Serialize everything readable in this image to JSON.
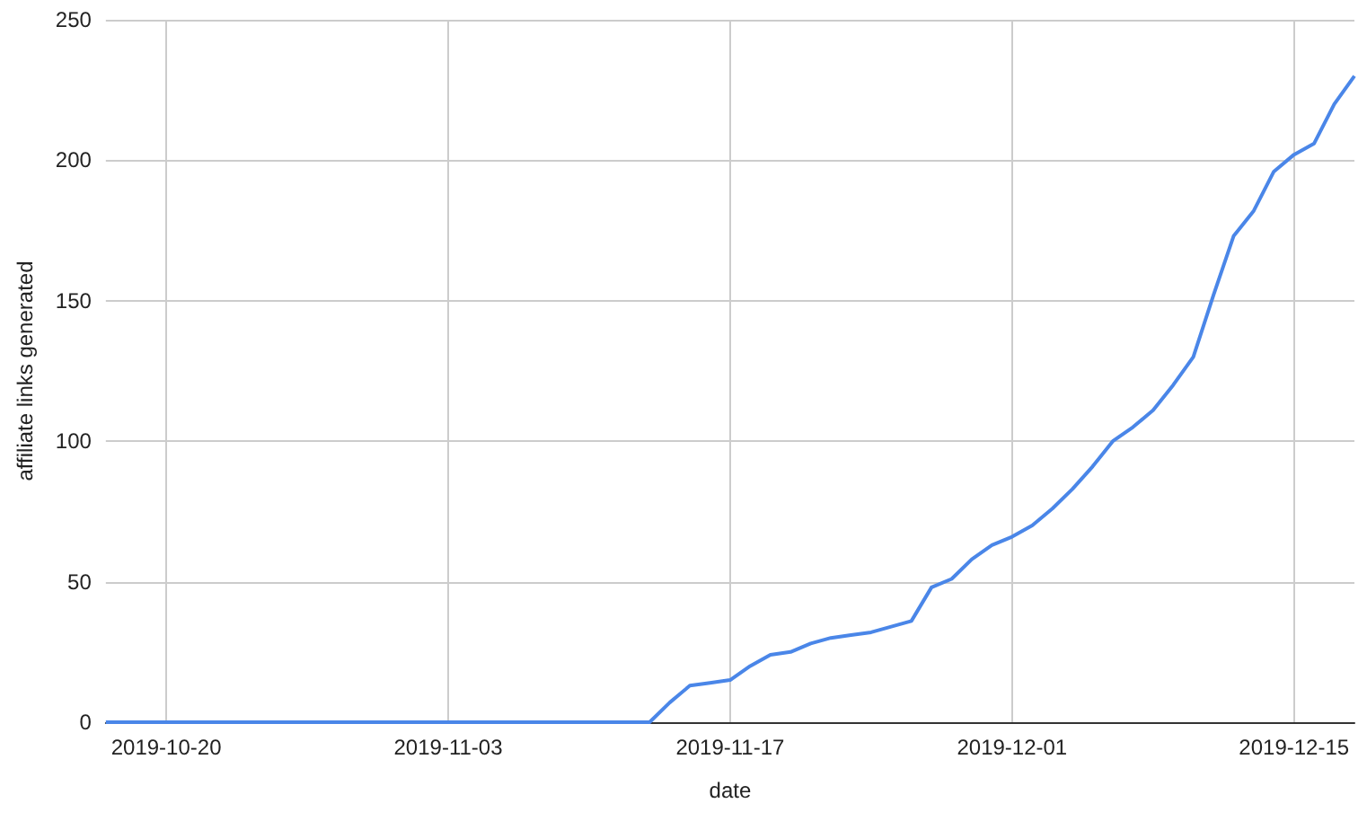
{
  "chart_data": {
    "type": "line",
    "xlabel": "date",
    "ylabel": "affiliate links generated",
    "x": [
      "2019-10-17",
      "2019-11-13",
      "2019-11-14",
      "2019-11-15",
      "2019-11-16",
      "2019-11-17",
      "2019-11-18",
      "2019-11-19",
      "2019-11-20",
      "2019-11-21",
      "2019-11-22",
      "2019-11-23",
      "2019-11-24",
      "2019-11-25",
      "2019-11-26",
      "2019-11-27",
      "2019-11-28",
      "2019-11-29",
      "2019-11-30",
      "2019-12-01",
      "2019-12-02",
      "2019-12-03",
      "2019-12-04",
      "2019-12-05",
      "2019-12-06",
      "2019-12-07",
      "2019-12-08",
      "2019-12-09",
      "2019-12-10",
      "2019-12-11",
      "2019-12-12",
      "2019-12-13",
      "2019-12-14",
      "2019-12-15",
      "2019-12-16",
      "2019-12-17",
      "2019-12-18"
    ],
    "series": [
      {
        "color": "#4a86e8",
        "values": [
          0,
          0,
          7,
          13,
          14,
          15,
          20,
          24,
          25,
          28,
          30,
          31,
          32,
          34,
          36,
          48,
          51,
          58,
          63,
          66,
          70,
          76,
          83,
          91,
          100,
          105,
          111,
          120,
          130,
          152,
          173,
          182,
          196,
          202,
          206,
          220,
          230
        ]
      }
    ],
    "xlim": [
      "2019-10-17",
      "2019-12-18"
    ],
    "xticks": [
      "2019-10-20",
      "2019-11-03",
      "2019-11-17",
      "2019-12-01",
      "2019-12-15"
    ],
    "ylim": [
      0,
      250
    ],
    "yticks": [
      0,
      50,
      100,
      150,
      200,
      250
    ],
    "grid": true,
    "marker": "none",
    "line_style": "solid"
  }
}
